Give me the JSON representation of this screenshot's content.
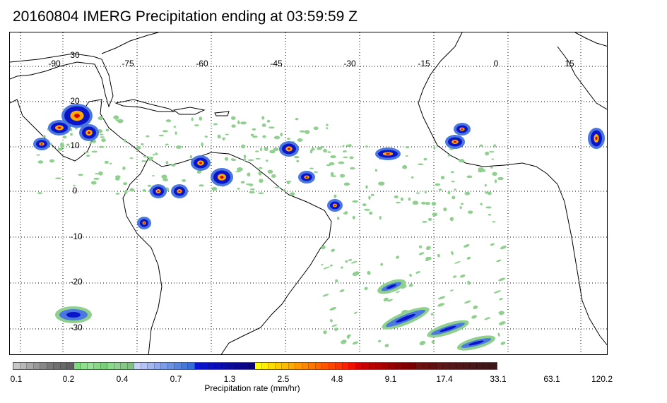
{
  "title": "20160804 IMERG Precipitation ending at 03:59:59 Z",
  "map": {
    "lon_labels": [
      "-90",
      "-75",
      "-60",
      "-45",
      "-30",
      "-15",
      "0",
      "15"
    ],
    "lat_labels": [
      "30",
      "20",
      "10",
      "0",
      "-10",
      "-20",
      "-30"
    ],
    "grid_style": "dotted"
  },
  "colorbar": {
    "title": "Precipitation rate (mm/hr)",
    "tick_labels": [
      "0.1",
      "0.2",
      "0.4",
      "0.7",
      "1.3",
      "2.5",
      "4.8",
      "9.1",
      "17.4",
      "33.1",
      "63.1",
      "120.2"
    ],
    "colors": [
      "#c8c8c8",
      "#b8b8b8",
      "#a8a8a8",
      "#989898",
      "#888888",
      "#787878",
      "#707070",
      "#686868",
      "#606060",
      "#7edb7e",
      "#8edf8e",
      "#98e098",
      "#88d888",
      "#78d078",
      "#8cd88c",
      "#92cf92",
      "#86c886",
      "#80c080",
      "#c8d2f8",
      "#b4c4f4",
      "#a2b6f0",
      "#90aaec",
      "#7c9ce8",
      "#6a90e4",
      "#5884e0",
      "#4678dc",
      "#346cd8",
      "#0a14d8",
      "#0a12cc",
      "#0a10c0",
      "#0a0eb4",
      "#0a0ca8",
      "#0a0a9c",
      "#0a0890",
      "#0a0684",
      "#0a0478",
      "#ffff00",
      "#ffee00",
      "#ffdd00",
      "#ffcc00",
      "#ffbb00",
      "#ffaa00",
      "#ff9900",
      "#ff8800",
      "#ff7700",
      "#ff6600",
      "#ff5500",
      "#ff4400",
      "#ff3300",
      "#ff2200",
      "#ee1100",
      "#dd0000",
      "#cc0000",
      "#bb0000",
      "#b00000",
      "#a40000",
      "#980000",
      "#8c0000",
      "#800000",
      "#780000",
      "#701010",
      "#681010",
      "#601010",
      "#601818",
      "#5a1818",
      "#541818",
      "#501818",
      "#4c1818",
      "#481818",
      "#441818",
      "#401818",
      "#3c1818"
    ]
  },
  "precip_colors": {
    "light": "#8fd08f",
    "moderate": "#4a78e0",
    "heavy": "#0a14c8",
    "intense": "#ffaa00",
    "extreme": "#dd0000"
  }
}
